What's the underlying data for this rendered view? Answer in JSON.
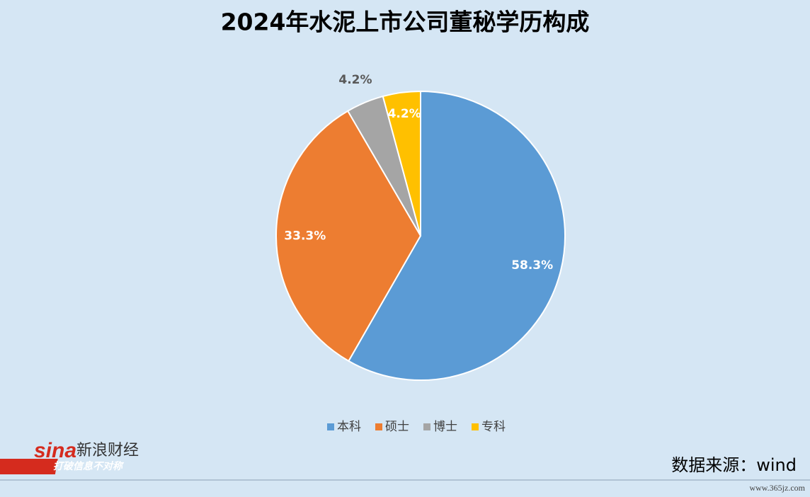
{
  "chart_data": {
    "type": "pie",
    "title": "2024年水泥上市公司董秘学历构成",
    "categories": [
      "本科",
      "硕士",
      "博士",
      "专科"
    ],
    "values": [
      58.3,
      33.3,
      4.2,
      4.2
    ],
    "value_labels": [
      "58.3%",
      "33.3%",
      "4.2%",
      "4.2%"
    ],
    "colors": [
      "#5b9bd5",
      "#ed7d31",
      "#a5a5a5",
      "#ffc000"
    ],
    "legend": "bottom",
    "source": "数据来源：wind"
  },
  "branding": {
    "logo": "sina",
    "name": "新浪财经",
    "slogan": "打破信息不对称",
    "watermark": "www.365jz.com"
  }
}
